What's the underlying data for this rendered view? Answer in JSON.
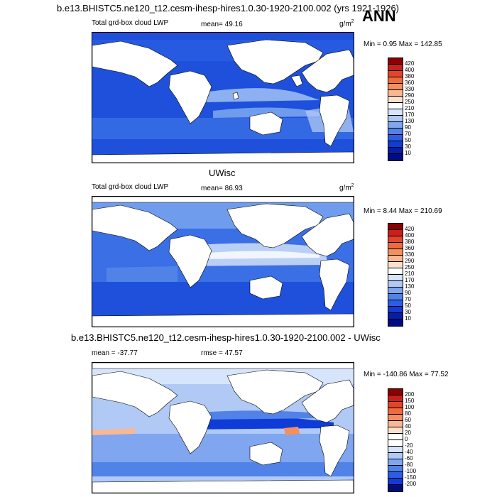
{
  "header": {
    "title": "b.e13.BHISTC5.ne120_t12.cesm-ihesp-hires1.0.30-1920-2100.002 (yrs 1921-1926)",
    "season": "ANN"
  },
  "panel1": {
    "left_label": "Total grd-box cloud LWP",
    "mean_text": "mean=  49.16",
    "units_base": "g/m",
    "units_exp": "2",
    "minmax": "Min =   0.95 Max = 142.85",
    "colorbar": {
      "labels": [
        "420",
        "400",
        "380",
        "360",
        "330",
        "290",
        "250",
        "210",
        "170",
        "130",
        "90",
        "70",
        "50",
        "30",
        "10"
      ],
      "colors": [
        "#8b0000",
        "#c8201a",
        "#e3452a",
        "#f06b3c",
        "#f58f5e",
        "#f9b894",
        "#fce0cf",
        "#ffffff",
        "#d6e5fb",
        "#b0c9f5",
        "#7fa6ee",
        "#5182e8",
        "#2c5ee3",
        "#0f3cd6",
        "#0a1ba6",
        "#000d80"
      ]
    }
  },
  "panel2": {
    "top_title": "UWisc",
    "left_label": "Total grd-box cloud LWP",
    "mean_text": "mean=  86.93",
    "units_base": "g/m",
    "units_exp": "2",
    "minmax": "Min =   8.44 Max = 210.69",
    "colorbar": {
      "labels": [
        "420",
        "400",
        "380",
        "360",
        "330",
        "290",
        "250",
        "210",
        "170",
        "130",
        "90",
        "70",
        "50",
        "30",
        "10"
      ],
      "colors": [
        "#8b0000",
        "#c8201a",
        "#e3452a",
        "#f06b3c",
        "#f58f5e",
        "#f9b894",
        "#fce0cf",
        "#ffffff",
        "#d6e5fb",
        "#b0c9f5",
        "#7fa6ee",
        "#5182e8",
        "#2c5ee3",
        "#0f3cd6",
        "#0a1ba6",
        "#000d80"
      ]
    }
  },
  "panel3": {
    "top_title": "b.e13.BHISTC5.ne120_t12.cesm-ihesp-hires1.0.30-1920-2100.002 - UWisc",
    "mean_text": "mean = -37.77",
    "rmse_text": "rmse =  47.57",
    "minmax": "Min = -140.86 Max =  77.52",
    "colorbar": {
      "labels": [
        "200",
        "150",
        "100",
        "80",
        "60",
        "40",
        "20",
        "0",
        "-20",
        "-40",
        "-60",
        "-80",
        "-100",
        "-150",
        "-200"
      ],
      "colors": [
        "#8b0000",
        "#c8201a",
        "#e3452a",
        "#f06b3c",
        "#f58f5e",
        "#f9b894",
        "#fce0cf",
        "#ffffff",
        "#ffffff",
        "#d6e5fb",
        "#b0c9f5",
        "#7fa6ee",
        "#5182e8",
        "#2c5ee3",
        "#0f3cd6",
        "#000d80"
      ]
    }
  },
  "colors": {
    "ocean1": "#1e50dc",
    "ocean2": "#6f9cec",
    "ocean3": "#b9cff5",
    "land": "#ffffff"
  }
}
